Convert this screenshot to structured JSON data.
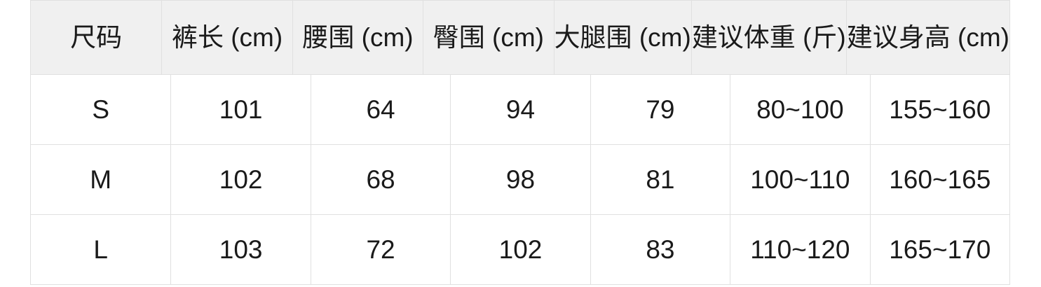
{
  "colors": {
    "page_background": "#ffffff",
    "header_background": "#f0f0f0",
    "grid_border": "#e0e0e0",
    "text": "#1a1a1a"
  },
  "chart_data": {
    "type": "table",
    "title": "",
    "columns": [
      "尺码",
      "裤长 (cm)",
      "腰围 (cm)",
      "臀围 (cm)",
      "大腿围 (cm)",
      "建议体重 (斤)",
      "建议身高 (cm)"
    ],
    "rows": [
      [
        "S",
        "101",
        "64",
        "94",
        "79",
        "80~100",
        "155~160"
      ],
      [
        "M",
        "102",
        "68",
        "98",
        "81",
        "100~110",
        "160~165"
      ],
      [
        "L",
        "103",
        "72",
        "102",
        "83",
        "110~120",
        "165~170"
      ]
    ]
  }
}
